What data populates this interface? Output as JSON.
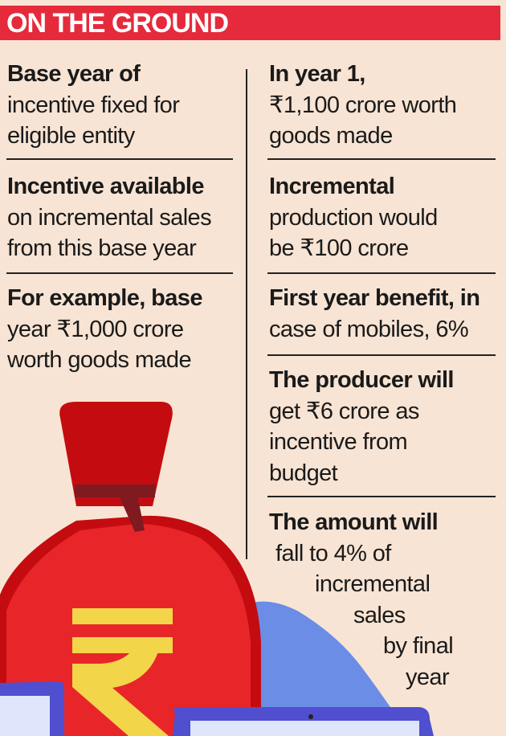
{
  "header": {
    "title": "ON THE GROUND"
  },
  "left": [
    {
      "bold": "Base year of",
      "lines": [
        "incentive fixed for",
        "eligible entity"
      ]
    },
    {
      "bold": "Incentive available",
      "lines": [
        "on incremental sales",
        "from this base year"
      ]
    },
    {
      "bold": "For example, base",
      "lines": [
        "year ₹1,000 crore",
        "worth goods made"
      ]
    }
  ],
  "right": [
    {
      "bold": "In year 1,",
      "lines": [
        "₹1,100 crore worth",
        "goods made"
      ]
    },
    {
      "bold": "Incremental",
      "lines": [
        "production would",
        "be ₹100 crore"
      ]
    },
    {
      "bold": "First year benefit, in",
      "lines": [
        "case of mobiles, 6%"
      ]
    },
    {
      "bold": "The producer will",
      "lines": [
        "get ₹6 crore as",
        "incentive from",
        "budget"
      ]
    },
    {
      "bold": "The amount will",
      "lines": [
        "fall to 4% of",
        "incremental",
        "sales",
        "by final",
        "year"
      ]
    }
  ],
  "colors": {
    "background": "#f8e4d4",
    "header": "#e52a3c",
    "bag": "#e8262a",
    "bag_dark": "#c40c10",
    "rupee": "#f3d54a",
    "blue": "#6b8de6",
    "laptop": "#4f4fd0"
  },
  "icons": [
    "money-bag-icon",
    "rupee-icon",
    "laptop-icon"
  ]
}
